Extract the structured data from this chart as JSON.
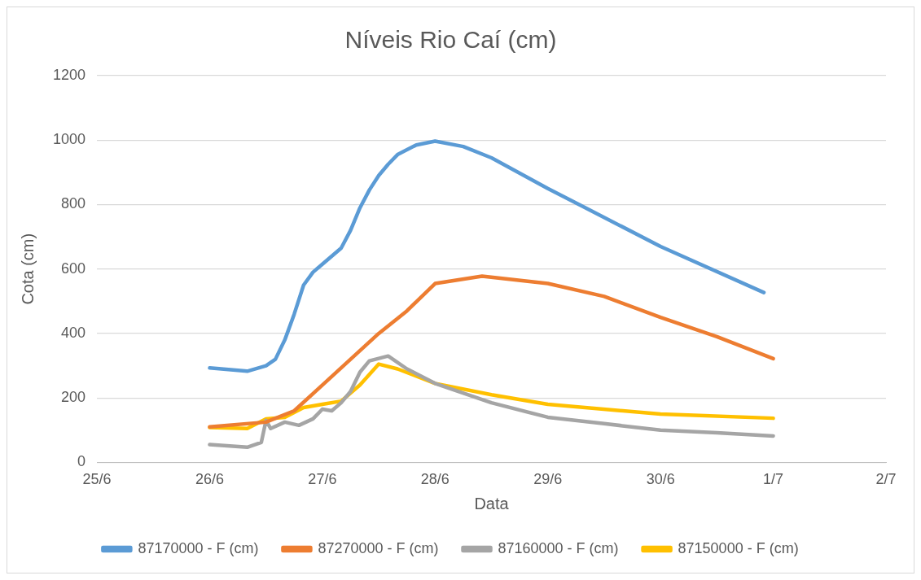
{
  "chart_data": {
    "type": "line",
    "title": "Níveis Rio Caí (cm)",
    "xlabel": "Data",
    "ylabel": "Cota (cm)",
    "xlim": [
      "--06-25",
      "--07-02"
    ],
    "xticks": [
      {
        "value": "--06-25",
        "label": "25/6"
      },
      {
        "value": "--06-26",
        "label": "26/6"
      },
      {
        "value": "--06-27",
        "label": "27/6"
      },
      {
        "value": "--06-28",
        "label": "28/6"
      },
      {
        "value": "--06-29",
        "label": "29/6"
      },
      {
        "value": "--06-30",
        "label": "30/6"
      },
      {
        "value": "--07-01",
        "label": "1/7"
      },
      {
        "value": "--07-02",
        "label": "2/7"
      }
    ],
    "ylim": [
      0,
      1200
    ],
    "yticks": [
      0,
      200,
      400,
      600,
      800,
      1000,
      1200
    ],
    "grid": "y",
    "legend": "bottom",
    "marker": "none",
    "line_style": "solid",
    "series": [
      {
        "name": "87170000 - F (cm)",
        "color": "#5b9bd5",
        "x": [
          "--06-26T00:00",
          "--06-26T08:00",
          "--06-26T12:00",
          "--06-26T14:00",
          "--06-26T16:00",
          "--06-26T18:00",
          "--06-26T20:00",
          "--06-26T22:00",
          "--06-27T00:00",
          "--06-27T04:00",
          "--06-27T06:00",
          "--06-27T08:00",
          "--06-27T10:00",
          "--06-27T12:00",
          "--06-27T14:00",
          "--06-27T16:00",
          "--06-27T20:00",
          "--06-28T00:00",
          "--06-28T06:00",
          "--06-28T12:00",
          "--06-29T00:00",
          "--06-30T00:00",
          "--06-30T22:00"
        ],
        "values": [
          293,
          283,
          300,
          320,
          380,
          460,
          550,
          590,
          615,
          665,
          720,
          790,
          845,
          890,
          925,
          955,
          985,
          997,
          980,
          945,
          850,
          670,
          527
        ]
      },
      {
        "name": "87270000 - F (cm)",
        "color": "#ed7d31",
        "x": [
          "--06-26T00:00",
          "--06-26T12:00",
          "--06-26T18:00",
          "--06-27T00:00",
          "--06-27T06:00",
          "--06-27T12:00",
          "--06-27T18:00",
          "--06-28T00:00",
          "--06-28T10:00",
          "--06-29T00:00",
          "--06-29T12:00",
          "--06-30T00:00",
          "--06-30T12:00",
          "--07-01T00:00"
        ],
        "values": [
          110,
          125,
          160,
          240,
          320,
          400,
          470,
          555,
          578,
          555,
          515,
          450,
          390,
          322
        ]
      },
      {
        "name": "87160000 - F (cm)",
        "color": "#a5a5a5",
        "x": [
          "--06-26T00:00",
          "--06-26T08:00",
          "--06-26T11:00",
          "--06-26T12:00",
          "--06-26T13:00",
          "--06-26T16:00",
          "--06-26T19:00",
          "--06-26T22:00",
          "--06-27T00:00",
          "--06-27T02:00",
          "--06-27T04:00",
          "--06-27T06:00",
          "--06-27T08:00",
          "--06-27T10:00",
          "--06-27T14:00",
          "--06-27T18:00",
          "--06-28T00:00",
          "--06-28T12:00",
          "--06-29T00:00",
          "--06-29T12:00",
          "--06-30T00:00",
          "--06-30T12:00",
          "--07-01T00:00"
        ],
        "values": [
          55,
          47,
          62,
          130,
          105,
          125,
          115,
          135,
          165,
          160,
          185,
          220,
          280,
          315,
          330,
          290,
          245,
          185,
          140,
          120,
          100,
          92,
          82
        ]
      },
      {
        "name": "87150000 - F (cm)",
        "color": "#ffc000",
        "x": [
          "--06-26T00:00",
          "--06-26T08:00",
          "--06-26T12:00",
          "--06-26T16:00",
          "--06-26T20:00",
          "--06-27T00:00",
          "--06-27T04:00",
          "--06-27T08:00",
          "--06-27T12:00",
          "--06-27T16:00",
          "--06-28T00:00",
          "--06-28T12:00",
          "--06-29T00:00",
          "--06-30T00:00",
          "--07-01T00:00"
        ],
        "values": [
          108,
          105,
          135,
          140,
          170,
          180,
          190,
          240,
          305,
          290,
          245,
          210,
          180,
          150,
          137
        ]
      }
    ]
  }
}
